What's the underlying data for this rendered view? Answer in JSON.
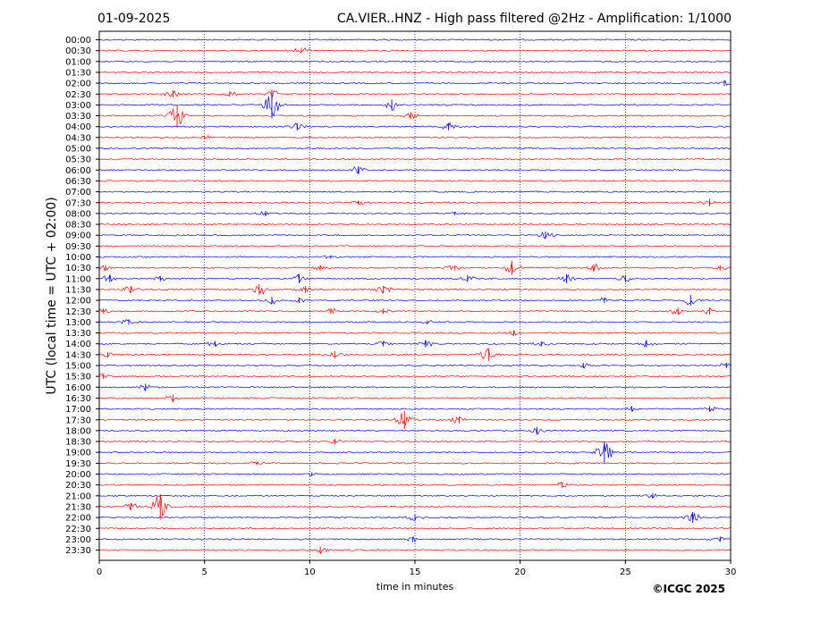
{
  "header": {
    "date": "01-09-2025",
    "title": "CA.VIER..HNZ - High pass filtered @2Hz - Amplification: 1/1000"
  },
  "footer": {
    "copyright": "©ICGC 2025"
  },
  "colors": {
    "trace_odd": "#ff0000",
    "trace_even": "#0000ff",
    "grid": "#0000aa",
    "axis": "#000000"
  },
  "chart_data": {
    "type": "helicorder",
    "xlabel": "time in minutes",
    "ylabel": "UTC (local time = UTC + 02:00)",
    "xlim": [
      0,
      30
    ],
    "x_ticks": [
      "0",
      "5",
      "10",
      "15",
      "20",
      "25",
      "30"
    ],
    "x_tick_values": [
      0,
      5,
      10,
      15,
      20,
      25,
      30
    ],
    "vertical_grid": true,
    "grid_style": "dotted",
    "row_colors": [
      "blue",
      "red"
    ],
    "rows": [
      {
        "label": "00:00",
        "events": []
      },
      {
        "label": "00:30",
        "events": [
          {
            "t": 9.6,
            "amp": 0.3
          }
        ]
      },
      {
        "label": "01:00",
        "events": []
      },
      {
        "label": "01:30",
        "events": []
      },
      {
        "label": "02:00",
        "events": [
          {
            "t": 29.7,
            "amp": 0.3
          }
        ]
      },
      {
        "label": "02:30",
        "events": [
          {
            "t": 3.5,
            "amp": 0.4
          },
          {
            "t": 6.2,
            "amp": 0.3
          },
          {
            "t": 8.2,
            "amp": 0.5
          }
        ]
      },
      {
        "label": "03:00",
        "events": [
          {
            "t": 8.2,
            "amp": 1.5
          },
          {
            "t": 13.9,
            "amp": 0.6
          }
        ]
      },
      {
        "label": "03:30",
        "events": [
          {
            "t": 3.7,
            "amp": 1.2
          },
          {
            "t": 14.8,
            "amp": 0.4
          }
        ]
      },
      {
        "label": "04:00",
        "events": [
          {
            "t": 9.4,
            "amp": 0.4
          },
          {
            "t": 16.6,
            "amp": 0.4
          }
        ]
      },
      {
        "label": "04:30",
        "events": [
          {
            "t": 5.0,
            "amp": 0.2
          }
        ]
      },
      {
        "label": "05:00",
        "events": []
      },
      {
        "label": "05:30",
        "events": []
      },
      {
        "label": "06:00",
        "events": [
          {
            "t": 12.3,
            "amp": 0.4
          }
        ]
      },
      {
        "label": "06:30",
        "events": []
      },
      {
        "label": "07:00",
        "events": []
      },
      {
        "label": "07:30",
        "events": [
          {
            "t": 12.3,
            "amp": 0.2
          },
          {
            "t": 29.0,
            "amp": 0.4
          }
        ]
      },
      {
        "label": "08:00",
        "events": [
          {
            "t": 7.9,
            "amp": 0.3
          },
          {
            "t": 16.9,
            "amp": 0.2
          }
        ]
      },
      {
        "label": "08:30",
        "events": []
      },
      {
        "label": "09:00",
        "events": [
          {
            "t": 21.2,
            "amp": 0.4
          }
        ]
      },
      {
        "label": "09:30",
        "events": []
      },
      {
        "label": "10:00",
        "events": [
          {
            "t": 11.0,
            "amp": 0.2
          }
        ]
      },
      {
        "label": "10:30",
        "events": [
          {
            "t": 0.3,
            "amp": 0.3
          },
          {
            "t": 10.5,
            "amp": 0.3
          },
          {
            "t": 16.9,
            "amp": 0.3
          },
          {
            "t": 19.6,
            "amp": 0.8
          },
          {
            "t": 23.5,
            "amp": 0.4
          },
          {
            "t": 29.5,
            "amp": 0.3
          }
        ]
      },
      {
        "label": "11:00",
        "events": [
          {
            "t": 0.5,
            "amp": 0.4
          },
          {
            "t": 2.9,
            "amp": 0.3
          },
          {
            "t": 9.5,
            "amp": 0.5
          },
          {
            "t": 17.5,
            "amp": 0.4
          },
          {
            "t": 22.2,
            "amp": 0.5
          },
          {
            "t": 25.0,
            "amp": 0.4
          }
        ]
      },
      {
        "label": "11:30",
        "events": [
          {
            "t": 1.5,
            "amp": 0.4
          },
          {
            "t": 7.6,
            "amp": 0.6
          },
          {
            "t": 9.8,
            "amp": 0.4
          },
          {
            "t": 13.5,
            "amp": 0.4
          }
        ]
      },
      {
        "label": "12:00",
        "events": [
          {
            "t": 8.2,
            "amp": 0.4
          },
          {
            "t": 9.5,
            "amp": 0.3
          },
          {
            "t": 24.0,
            "amp": 0.3
          },
          {
            "t": 28.1,
            "amp": 0.6
          }
        ]
      },
      {
        "label": "12:30",
        "events": [
          {
            "t": 0.2,
            "amp": 0.3
          },
          {
            "t": 11.0,
            "amp": 0.3
          },
          {
            "t": 13.5,
            "amp": 0.3
          },
          {
            "t": 27.5,
            "amp": 0.4
          },
          {
            "t": 29.0,
            "amp": 0.4
          }
        ]
      },
      {
        "label": "13:00",
        "events": [
          {
            "t": 1.4,
            "amp": 0.3
          },
          {
            "t": 15.6,
            "amp": 0.2
          }
        ]
      },
      {
        "label": "13:30",
        "events": [
          {
            "t": 19.7,
            "amp": 0.3
          }
        ]
      },
      {
        "label": "14:00",
        "events": [
          {
            "t": 5.5,
            "amp": 0.3
          },
          {
            "t": 13.5,
            "amp": 0.3
          },
          {
            "t": 15.5,
            "amp": 0.4
          },
          {
            "t": 21.0,
            "amp": 0.3
          },
          {
            "t": 26.0,
            "amp": 0.4
          }
        ]
      },
      {
        "label": "14:30",
        "events": [
          {
            "t": 0.4,
            "amp": 0.3
          },
          {
            "t": 11.2,
            "amp": 0.4
          },
          {
            "t": 18.5,
            "amp": 0.7
          }
        ]
      },
      {
        "label": "15:00",
        "events": [
          {
            "t": 29.8,
            "amp": 0.3
          },
          {
            "t": 23.0,
            "amp": 0.3
          }
        ]
      },
      {
        "label": "15:30",
        "events": [
          {
            "t": 0.2,
            "amp": 0.3
          }
        ]
      },
      {
        "label": "16:00",
        "events": [
          {
            "t": 2.2,
            "amp": 0.4
          }
        ]
      },
      {
        "label": "16:30",
        "events": [
          {
            "t": 3.5,
            "amp": 0.4
          }
        ]
      },
      {
        "label": "17:00",
        "events": [
          {
            "t": 25.3,
            "amp": 0.3
          },
          {
            "t": 29.0,
            "amp": 0.3
          }
        ]
      },
      {
        "label": "17:30",
        "events": [
          {
            "t": 14.5,
            "amp": 1.0
          },
          {
            "t": 17.1,
            "amp": 0.4
          }
        ]
      },
      {
        "label": "18:00",
        "events": [
          {
            "t": 20.8,
            "amp": 0.4
          }
        ]
      },
      {
        "label": "18:30",
        "events": [
          {
            "t": 11.2,
            "amp": 0.3
          }
        ]
      },
      {
        "label": "19:00",
        "events": [
          {
            "t": 24.0,
            "amp": 1.2
          }
        ]
      },
      {
        "label": "19:30",
        "events": [
          {
            "t": 7.5,
            "amp": 0.2
          }
        ]
      },
      {
        "label": "20:00",
        "events": [
          {
            "t": 10.1,
            "amp": 0.2
          }
        ]
      },
      {
        "label": "20:30",
        "events": [
          {
            "t": 22.0,
            "amp": 0.3
          }
        ]
      },
      {
        "label": "21:00",
        "events": [
          {
            "t": 26.3,
            "amp": 0.3
          }
        ]
      },
      {
        "label": "21:30",
        "events": [
          {
            "t": 1.5,
            "amp": 0.4
          },
          {
            "t": 2.9,
            "amp": 1.4
          }
        ]
      },
      {
        "label": "22:00",
        "events": [
          {
            "t": 15.0,
            "amp": 0.3
          },
          {
            "t": 28.2,
            "amp": 0.6
          }
        ]
      },
      {
        "label": "22:30",
        "events": []
      },
      {
        "label": "23:00",
        "events": [
          {
            "t": 14.9,
            "amp": 0.3
          },
          {
            "t": 29.5,
            "amp": 0.3
          }
        ]
      },
      {
        "label": "23:30",
        "events": [
          {
            "t": 10.5,
            "amp": 0.4
          }
        ]
      }
    ]
  }
}
